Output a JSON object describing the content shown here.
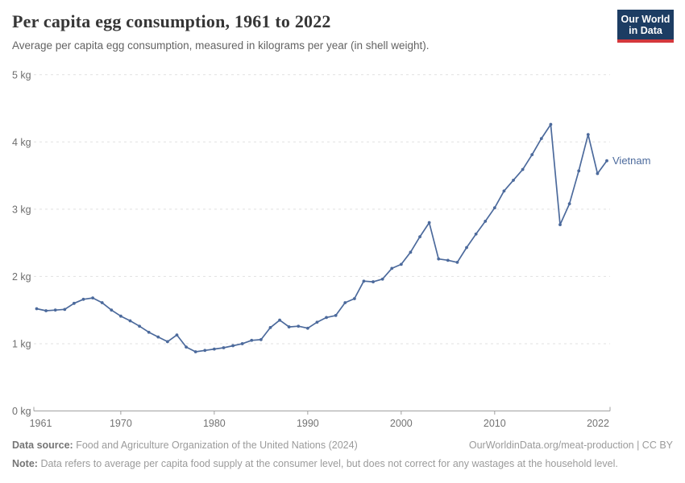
{
  "header": {
    "title": "Per capita egg consumption, 1961 to 2022",
    "subtitle": "Average per capita egg consumption, measured in kilograms per year (in shell weight)."
  },
  "logo": {
    "line1": "Our World",
    "line2": "in Data"
  },
  "chart_data": {
    "type": "line",
    "title": "Per capita egg consumption, 1961 to 2022",
    "xlabel": "",
    "ylabel": "",
    "unit": "kg",
    "ylim": [
      0,
      5
    ],
    "x_range": [
      1961,
      2022
    ],
    "grid": "horizontal-dashed",
    "legend": "end-of-line-label",
    "yticks": [
      {
        "value": 0,
        "label": "0 kg"
      },
      {
        "value": 1,
        "label": "1 kg"
      },
      {
        "value": 2,
        "label": "2 kg"
      },
      {
        "value": 3,
        "label": "3 kg"
      },
      {
        "value": 4,
        "label": "4 kg"
      },
      {
        "value": 5,
        "label": "5 kg"
      }
    ],
    "xticks": [
      {
        "value": 1961,
        "label": "1961"
      },
      {
        "value": 1970,
        "label": "1970"
      },
      {
        "value": 1980,
        "label": "1980"
      },
      {
        "value": 1990,
        "label": "1990"
      },
      {
        "value": 2000,
        "label": "2000"
      },
      {
        "value": 2010,
        "label": "2010"
      },
      {
        "value": 2022,
        "label": "2022"
      }
    ],
    "series": [
      {
        "name": "Vietnam",
        "color": "#4c6a9c",
        "x": [
          1961,
          1962,
          1963,
          1964,
          1965,
          1966,
          1967,
          1968,
          1969,
          1970,
          1971,
          1972,
          1973,
          1974,
          1975,
          1976,
          1977,
          1978,
          1979,
          1980,
          1981,
          1982,
          1983,
          1984,
          1985,
          1986,
          1987,
          1988,
          1989,
          1990,
          1991,
          1992,
          1993,
          1994,
          1995,
          1996,
          1997,
          1998,
          1999,
          2000,
          2001,
          2002,
          2003,
          2004,
          2005,
          2006,
          2007,
          2008,
          2009,
          2010,
          2011,
          2012,
          2013,
          2014,
          2015,
          2016,
          2017,
          2018,
          2019,
          2020,
          2021,
          2022
        ],
        "values": [
          1.52,
          1.49,
          1.5,
          1.51,
          1.6,
          1.66,
          1.68,
          1.61,
          1.5,
          1.41,
          1.34,
          1.26,
          1.17,
          1.1,
          1.03,
          1.13,
          0.95,
          0.88,
          0.9,
          0.92,
          0.94,
          0.97,
          1.0,
          1.05,
          1.06,
          1.24,
          1.35,
          1.25,
          1.26,
          1.23,
          1.32,
          1.39,
          1.42,
          1.61,
          1.67,
          1.93,
          1.92,
          1.96,
          2.12,
          2.18,
          2.36,
          2.59,
          2.8,
          2.26,
          2.24,
          2.21,
          2.43,
          2.63,
          2.82,
          3.02,
          3.27,
          3.43,
          3.59,
          3.81,
          4.05,
          4.26,
          2.77,
          3.08,
          3.57,
          4.11,
          3.53,
          3.72
        ]
      }
    ]
  },
  "footer": {
    "source_label": "Data source:",
    "source": "Food and Agriculture Organization of the United Nations (2024)",
    "link": "OurWorldinData.org/meat-production | CC BY",
    "note_label": "Note:",
    "note": "Data refers to average per capita food supply at the consumer level, but does not correct for any wastages at the household level."
  },
  "colors": {
    "line": "#4c6a9c",
    "grid": "#e1e1e1",
    "axis": "#a0a0a0",
    "tick_text": "#737373",
    "logo_bg": "#1d3d63",
    "logo_bar": "#d4383c"
  }
}
